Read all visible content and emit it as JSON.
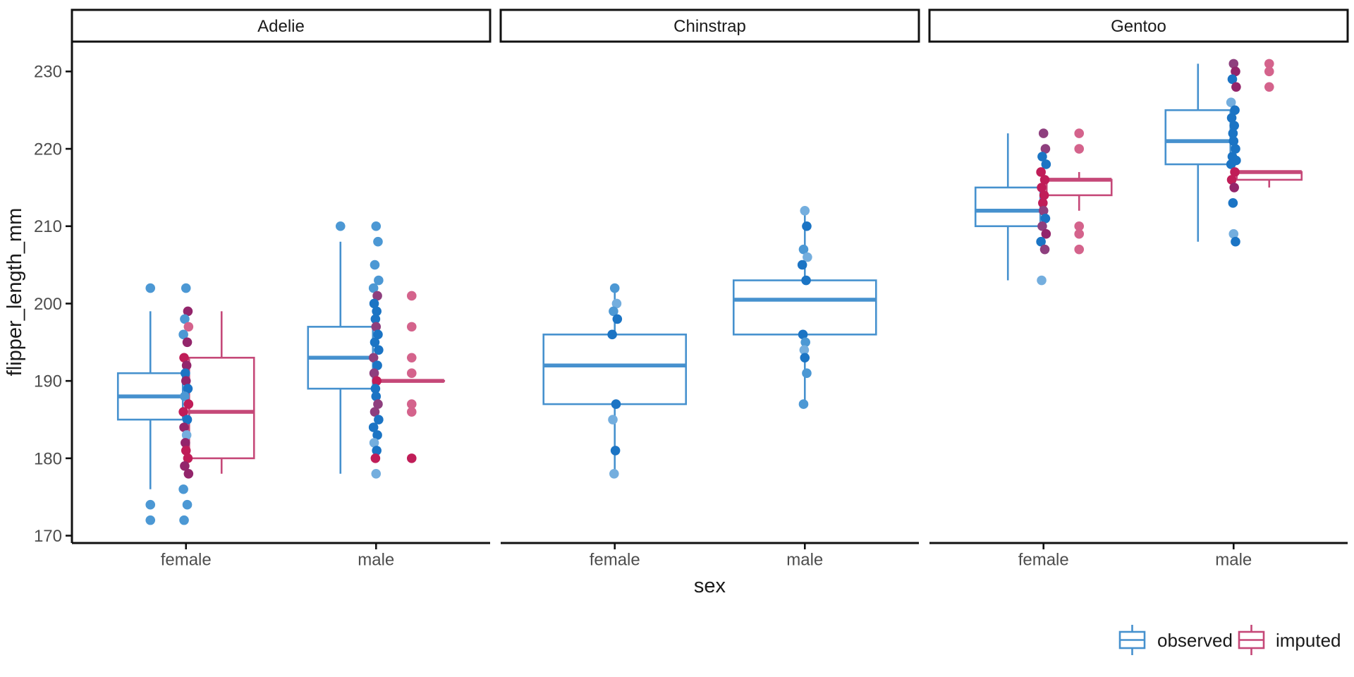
{
  "chart_data": {
    "type": "boxplot",
    "ylabel": "flipper_length_mm",
    "xlabel": "sex",
    "y_ticks": [
      170,
      180,
      190,
      200,
      210,
      220,
      230
    ],
    "y_range": [
      169.05,
      233.95
    ],
    "x_categories": [
      "female",
      "male"
    ],
    "legend": [
      {
        "label": "observed",
        "key": "observed"
      },
      {
        "label": "imputed",
        "key": "imputed"
      }
    ],
    "colors": {
      "observed_stroke": "#4691ce",
      "imputed_stroke": "#c54878",
      "axis_line": "#111111",
      "axis_text": "#4d4d4d",
      "text": "#1a1a1a",
      "strip_bg": "#ffffff",
      "points": {
        "b": "#4c98d4",
        "B": "#1b74c4",
        "l": "#74aede",
        "m": "#d4638c",
        "R": "#c01d58",
        "p": "#8e3f7e",
        "k": "#93256b"
      }
    },
    "facets": [
      {
        "label": "Adelie",
        "groups": [
          {
            "sex": "female",
            "boxes": [
              {
                "kind": "observed",
                "dodge": -1,
                "lw": 176,
                "q1": 185,
                "med": 188,
                "q3": 191,
                "uw": 199,
                "outliers": [
                  [
                    202,
                    "b"
                  ],
                  [
                    174,
                    "b"
                  ],
                  [
                    172,
                    "b"
                  ]
                ]
              },
              {
                "kind": "imputed",
                "dodge": 1,
                "lw": 178,
                "q1": 180,
                "med": 186,
                "q3": 193,
                "uw": 199,
                "outliers": []
              }
            ],
            "points": [
              [
                202,
                "b"
              ],
              [
                199,
                "k"
              ],
              [
                198,
                "b"
              ],
              [
                197,
                "m"
              ],
              [
                196,
                "b"
              ],
              [
                195,
                "k"
              ],
              [
                193,
                "R"
              ],
              [
                192,
                "k"
              ],
              [
                191,
                "B"
              ],
              [
                190,
                "k"
              ],
              [
                189,
                "B"
              ],
              [
                188,
                "b"
              ],
              [
                187,
                "R"
              ],
              [
                186,
                "R"
              ],
              [
                185,
                "B"
              ],
              [
                184,
                "k"
              ],
              [
                183,
                "l"
              ],
              [
                182,
                "k"
              ],
              [
                181,
                "R"
              ],
              [
                180,
                "R"
              ],
              [
                179,
                "k"
              ],
              [
                178,
                "k"
              ],
              [
                176,
                "b"
              ],
              [
                174,
                "b"
              ],
              [
                172,
                "b"
              ]
            ]
          },
          {
            "sex": "male",
            "boxes": [
              {
                "kind": "observed",
                "dodge": -1,
                "lw": 178,
                "q1": 189,
                "med": 193,
                "q3": 197,
                "uw": 208,
                "outliers": [
                  [
                    210,
                    "b"
                  ]
                ]
              },
              {
                "kind": "imputed",
                "dodge": 1,
                "lw": 190,
                "q1": 190,
                "med": 190,
                "q3": 190,
                "uw": 190,
                "outliers": [
                  [
                    201,
                    "m"
                  ],
                  [
                    197,
                    "m"
                  ],
                  [
                    193,
                    "m"
                  ],
                  [
                    191,
                    "m"
                  ],
                  [
                    187,
                    "m"
                  ],
                  [
                    186,
                    "m"
                  ],
                  [
                    180,
                    "R"
                  ]
                ]
              }
            ],
            "points": [
              [
                210,
                "b"
              ],
              [
                208,
                "b"
              ],
              [
                205,
                "b"
              ],
              [
                203,
                "b"
              ],
              [
                202,
                "b"
              ],
              [
                201,
                "p"
              ],
              [
                200,
                "B"
              ],
              [
                199,
                "B"
              ],
              [
                198,
                "B"
              ],
              [
                197,
                "p"
              ],
              [
                196,
                "B"
              ],
              [
                195,
                "B"
              ],
              [
                194,
                "B"
              ],
              [
                193,
                "p"
              ],
              [
                192,
                "B"
              ],
              [
                191,
                "p"
              ],
              [
                190,
                "R"
              ],
              [
                189,
                "B"
              ],
              [
                188,
                "B"
              ],
              [
                187,
                "p"
              ],
              [
                186,
                "p"
              ],
              [
                185,
                "B"
              ],
              [
                184,
                "B"
              ],
              [
                183,
                "B"
              ],
              [
                182,
                "l"
              ],
              [
                181,
                "B"
              ],
              [
                180,
                "R"
              ],
              [
                178,
                "l"
              ]
            ]
          }
        ]
      },
      {
        "label": "Chinstrap",
        "groups": [
          {
            "sex": "female",
            "boxes": [
              {
                "kind": "observed",
                "dodge": 0,
                "lw": 178,
                "q1": 187,
                "med": 192,
                "q3": 196,
                "uw": 202,
                "outliers": []
              }
            ],
            "points": [
              [
                202,
                "b"
              ],
              [
                200,
                "l"
              ],
              [
                199,
                "b"
              ],
              [
                198,
                "B"
              ],
              [
                196,
                "B"
              ],
              [
                187,
                "B"
              ],
              [
                185,
                "l"
              ],
              [
                181,
                "B"
              ],
              [
                178,
                "l"
              ]
            ]
          },
          {
            "sex": "male",
            "boxes": [
              {
                "kind": "observed",
                "dodge": 0,
                "lw": 187,
                "q1": 196,
                "med": 200.5,
                "q3": 203,
                "uw": 212,
                "outliers": []
              }
            ],
            "points": [
              [
                212,
                "l"
              ],
              [
                210,
                "B"
              ],
              [
                207,
                "b"
              ],
              [
                206,
                "l"
              ],
              [
                205,
                "B"
              ],
              [
                203,
                "B"
              ],
              [
                196,
                "B"
              ],
              [
                195,
                "b"
              ],
              [
                194,
                "l"
              ],
              [
                193,
                "B"
              ],
              [
                191,
                "b"
              ],
              [
                187,
                "b"
              ]
            ]
          }
        ]
      },
      {
        "label": "Gentoo",
        "groups": [
          {
            "sex": "female",
            "boxes": [
              {
                "kind": "observed",
                "dodge": -1,
                "lw": 203,
                "q1": 210,
                "med": 212,
                "q3": 215,
                "uw": 222,
                "outliers": []
              },
              {
                "kind": "imputed",
                "dodge": 1,
                "lw": 212,
                "q1": 214,
                "med": 216,
                "q3": 216,
                "uw": 217,
                "outliers": [
                  [
                    222,
                    "m"
                  ],
                  [
                    220,
                    "m"
                  ],
                  [
                    210,
                    "m"
                  ],
                  [
                    209,
                    "m"
                  ],
                  [
                    207,
                    "m"
                  ]
                ]
              }
            ],
            "points": [
              [
                222,
                "p"
              ],
              [
                220,
                "p"
              ],
              [
                219,
                "B"
              ],
              [
                218,
                "B"
              ],
              [
                217,
                "R"
              ],
              [
                216,
                "R"
              ],
              [
                215,
                "R"
              ],
              [
                214,
                "R"
              ],
              [
                213,
                "R"
              ],
              [
                212,
                "p"
              ],
              [
                211,
                "B"
              ],
              [
                210,
                "p"
              ],
              [
                209,
                "k"
              ],
              [
                208,
                "B"
              ],
              [
                207,
                "p"
              ],
              [
                203,
                "l"
              ]
            ]
          },
          {
            "sex": "male",
            "boxes": [
              {
                "kind": "observed",
                "dodge": -1,
                "lw": 208,
                "q1": 218,
                "med": 221,
                "q3": 225,
                "uw": 231,
                "outliers": []
              },
              {
                "kind": "imputed",
                "dodge": 1,
                "lw": 215,
                "q1": 216,
                "med": 217,
                "q3": 217,
                "uw": 217,
                "outliers": [
                  [
                    231,
                    "m"
                  ],
                  [
                    230,
                    "m"
                  ],
                  [
                    228,
                    "m"
                  ]
                ]
              }
            ],
            "points": [
              [
                231,
                "p"
              ],
              [
                230,
                "k"
              ],
              [
                229,
                "B"
              ],
              [
                228,
                "k"
              ],
              [
                226,
                "l"
              ],
              [
                225,
                "B"
              ],
              [
                224,
                "B"
              ],
              [
                223,
                "B"
              ],
              [
                222,
                "B"
              ],
              [
                221,
                "B"
              ],
              [
                220,
                "B"
              ],
              [
                219,
                "B"
              ],
              [
                218.5,
                "B"
              ],
              [
                218,
                "B"
              ],
              [
                217,
                "R"
              ],
              [
                216,
                "R"
              ],
              [
                215,
                "k"
              ],
              [
                213,
                "B"
              ],
              [
                209,
                "l"
              ],
              [
                208,
                "B"
              ]
            ]
          }
        ]
      }
    ]
  }
}
